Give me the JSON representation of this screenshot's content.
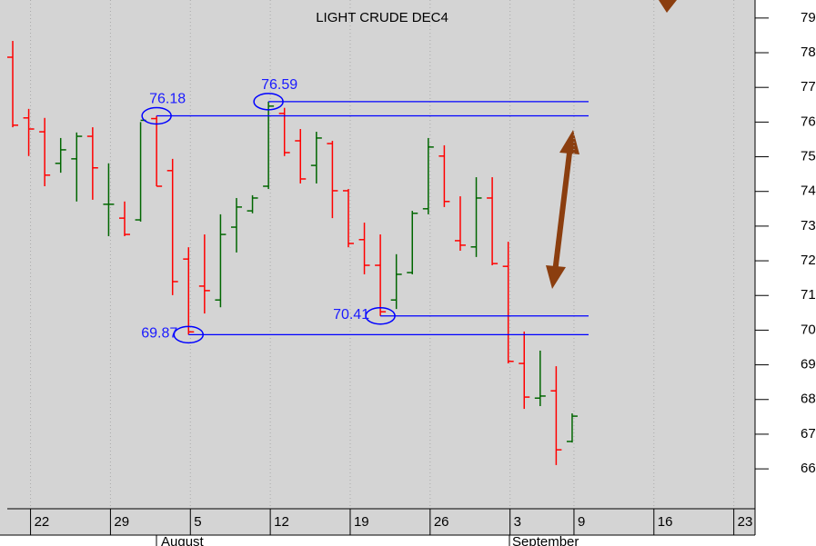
{
  "chart_data": {
    "type": "ohlc",
    "title": "LIGHT CRUDE DEC4",
    "categories": [
      null,
      "22",
      null,
      null,
      null,
      null,
      "29",
      null,
      null,
      null,
      null,
      "5",
      null,
      null,
      null,
      null,
      "12",
      null,
      null,
      null,
      null,
      "19",
      null,
      null,
      null,
      null,
      "26",
      null,
      null,
      null,
      null,
      "3",
      null,
      null,
      null,
      "9",
      null,
      null,
      null,
      null,
      "16",
      null,
      null,
      null,
      null,
      "23"
    ],
    "months": [
      "August",
      "September"
    ],
    "open": [
      77.87,
      76.12,
      75.72,
      74.81,
      74.94,
      75.59,
      73.63,
      73.23,
      73.18,
      76.1,
      74.6,
      72.05,
      71.27,
      70.87,
      72.97,
      73.44,
      74.15,
      76.25,
      75.46,
      74.75,
      75.38,
      74.02,
      72.61,
      71.87,
      70.87,
      71.66,
      73.5,
      75.02,
      72.58,
      72.4,
      73.81,
      71.84,
      69.04,
      68.04,
      68.25,
      66.79,
      null,
      null,
      null,
      null,
      null,
      null,
      null,
      null,
      null,
      null
    ],
    "high": [
      78.34,
      76.38,
      76.12,
      75.54,
      75.7,
      75.85,
      74.81,
      73.71,
      76.0,
      76.18,
      74.94,
      72.39,
      72.76,
      73.34,
      73.81,
      73.89,
      76.59,
      76.41,
      75.8,
      75.72,
      75.46,
      74.07,
      73.1,
      72.76,
      72.19,
      73.44,
      75.54,
      75.33,
      73.86,
      74.41,
      74.41,
      72.55,
      69.96,
      69.41,
      68.96,
      67.6,
      null,
      null,
      null,
      null,
      null,
      null,
      null,
      null,
      null,
      null
    ],
    "low": [
      75.85,
      75.02,
      74.15,
      74.54,
      73.71,
      73.76,
      72.71,
      72.71,
      73.13,
      74.15,
      71.01,
      69.87,
      70.48,
      70.66,
      72.24,
      73.37,
      74.07,
      75.02,
      74.23,
      74.23,
      73.23,
      72.39,
      71.61,
      70.41,
      70.61,
      71.61,
      73.34,
      73.55,
      72.29,
      72.11,
      71.87,
      69.04,
      67.73,
      67.81,
      66.11,
      66.76,
      null,
      null,
      null,
      null,
      null,
      null,
      null,
      null,
      null,
      null
    ],
    "close": [
      75.91,
      75.8,
      74.47,
      75.2,
      75.59,
      74.68,
      73.63,
      72.76,
      76.05,
      74.15,
      71.4,
      69.95,
      71.14,
      72.76,
      73.55,
      73.81,
      76.46,
      75.12,
      74.36,
      75.54,
      74.02,
      72.5,
      71.87,
      70.53,
      71.61,
      73.37,
      75.28,
      73.71,
      72.45,
      73.81,
      71.92,
      69.1,
      68.07,
      68.1,
      66.55,
      67.52,
      null,
      null,
      null,
      null,
      null,
      null,
      null,
      null,
      null,
      null
    ],
    "up_color": "#006600",
    "down_color": "#ff0000",
    "levels": [
      76.18,
      76.59,
      70.41,
      69.87
    ],
    "level_color": "#0000ff",
    "ylim": [
      64.85,
      79.52
    ],
    "yticks": [
      66,
      67,
      68,
      69,
      70,
      71,
      72,
      73,
      74,
      75,
      76,
      77,
      78,
      79
    ],
    "grid": true
  }
}
